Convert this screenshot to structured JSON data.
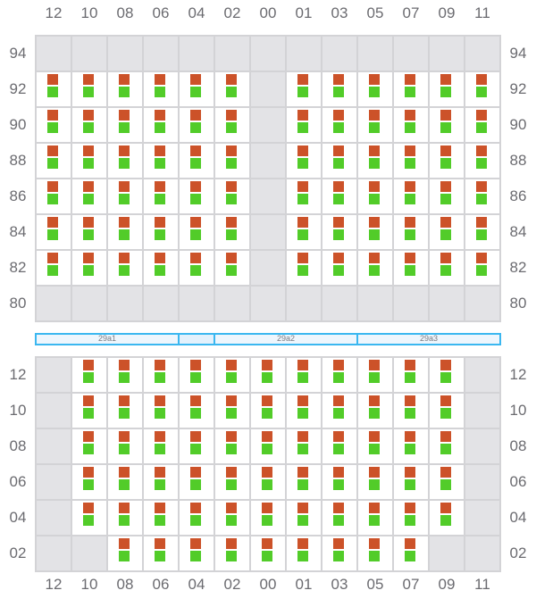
{
  "columns": [
    "12",
    "10",
    "08",
    "06",
    "04",
    "02",
    "00",
    "01",
    "03",
    "05",
    "07",
    "09",
    "11"
  ],
  "top_section": {
    "rows": [
      {
        "label": "94",
        "cells": "-------------"
      },
      {
        "label": "92",
        "cells": "SSSSSS-SSSSSS"
      },
      {
        "label": "90",
        "cells": "SSSSSS-SSSSSS"
      },
      {
        "label": "88",
        "cells": "SSSSSS-SSSSSS"
      },
      {
        "label": "86",
        "cells": "SSSSSS-SSSSSS"
      },
      {
        "label": "84",
        "cells": "SSSSSS-SSSSSS"
      },
      {
        "label": "82",
        "cells": "SSSSSS-SSSSSS"
      },
      {
        "label": "80",
        "cells": "-------------"
      }
    ]
  },
  "zones": [
    {
      "label": "29a1",
      "span": 4
    },
    {
      "label": "",
      "span": 1
    },
    {
      "label": "29a2",
      "span": 4
    },
    {
      "label": "29a3",
      "span": 4
    }
  ],
  "bottom_section": {
    "rows": [
      {
        "label": "12",
        "cells": "-SSSSSSSSSSS-"
      },
      {
        "label": "10",
        "cells": "-SSSSSSSSSSS-"
      },
      {
        "label": "08",
        "cells": "-SSSSSSSSSSS-"
      },
      {
        "label": "06",
        "cells": "-SSSSSSSSSSS-"
      },
      {
        "label": "04",
        "cells": "-SSSSSSSSSSS-"
      },
      {
        "label": "02",
        "cells": "--SSSSSSSSS--"
      }
    ]
  },
  "legend_colors": {
    "upper_marker": "#cc5229",
    "lower_marker": "#52cc29",
    "empty": "#e3e3e6",
    "zone_border": "#3bb7f0"
  }
}
